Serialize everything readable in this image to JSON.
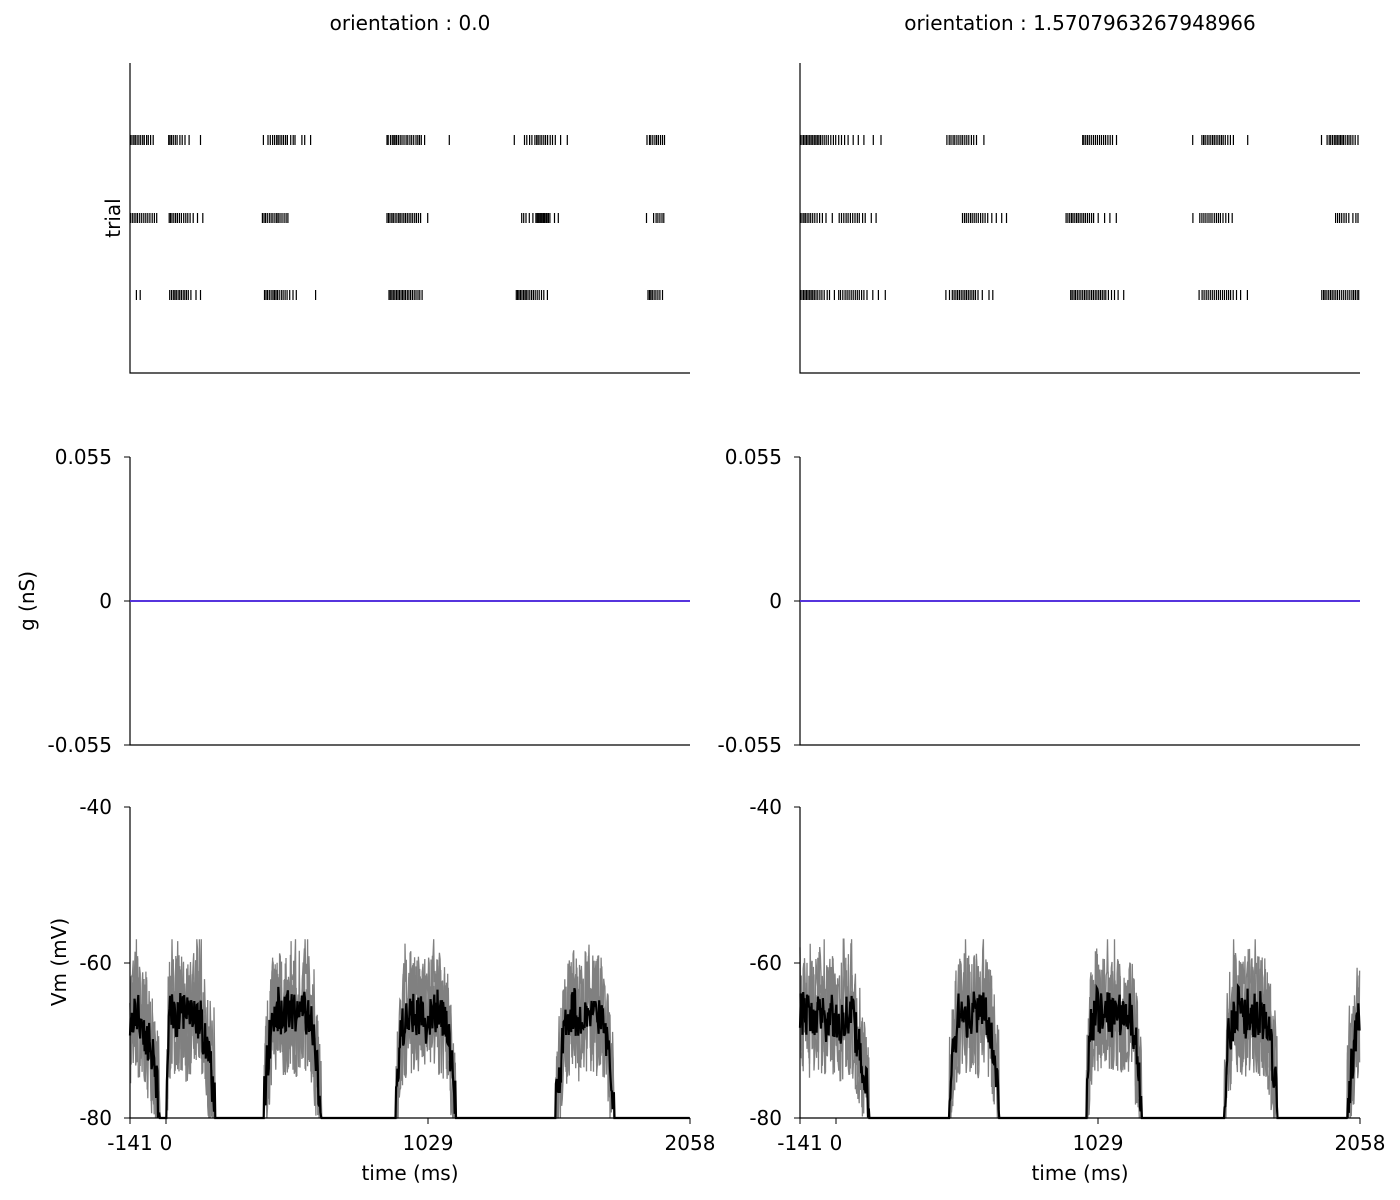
{
  "chart_data": [
    {
      "type": "raster",
      "column": 0,
      "title": "orientation : 0.0",
      "ylabel": "trial",
      "xlim": [
        -141,
        2058
      ],
      "trials": [
        {
          "spike_times_ms": [
            -139,
            -133,
            -126,
            -120,
            -113,
            -106,
            -99,
            -91,
            -85,
            -76,
            -69,
            -60,
            -50,
            11,
            16,
            22,
            29,
            37,
            44,
            55,
            64,
            75,
            91,
            136,
            383,
            401,
            410,
            419,
            427,
            435,
            441,
            448,
            455,
            462,
            470,
            477,
            490,
            500,
            507,
            534,
            545,
            568,
            868,
            873,
            882,
            889,
            895,
            900,
            906,
            913,
            920,
            927,
            935,
            943,
            950,
            958,
            965,
            973,
            982,
            989,
            996,
            1003,
            1016,
            1113,
            1368,
            1408,
            1417,
            1428,
            1437,
            1449,
            1456,
            1462,
            1469,
            1476,
            1484,
            1491,
            1499,
            1509,
            1518,
            1529,
            1550,
            1576,
            1889,
            1899,
            1904,
            1912,
            1920,
            1927,
            1934,
            1942,
            1950,
            1958
          ]
        },
        {
          "spike_times_ms": [
            -139,
            -132,
            -125,
            -118,
            -111,
            -103,
            -95,
            -87,
            -79,
            -71,
            -63,
            -54,
            -45,
            -36,
            13,
            18,
            24,
            31,
            38,
            45,
            53,
            61,
            70,
            78,
            86,
            95,
            107,
            124,
            145,
            379,
            385,
            391,
            398,
            406,
            413,
            420,
            428,
            435,
            441,
            448,
            456,
            464,
            472,
            479,
            868,
            874,
            880,
            887,
            893,
            900,
            907,
            914,
            920,
            927,
            934,
            941,
            948,
            955,
            962,
            969,
            977,
            984,
            992,
            1000,
            1028,
            1397,
            1405,
            1414,
            1427,
            1441,
            1453,
            1458,
            1462,
            1466,
            1470,
            1474,
            1478,
            1483,
            1487,
            1492,
            1497,
            1502,
            1508,
            1526,
            1541,
            1887,
            1915,
            1925,
            1932,
            1940,
            1948,
            1955
          ]
        },
        {
          "spike_times_ms": [
            -116,
            -101,
            15,
            22,
            29,
            35,
            41,
            48,
            54,
            61,
            68,
            74,
            81,
            88,
            98,
            118,
            136,
            387,
            393,
            399,
            406,
            413,
            420,
            426,
            432,
            438,
            445,
            453,
            460,
            468,
            476,
            486,
            499,
            512,
            588,
            876,
            881,
            887,
            893,
            899,
            905,
            911,
            917,
            923,
            929,
            935,
            941,
            948,
            954,
            961,
            968,
            975,
            982,
            990,
            997,
            1006,
            1376,
            1381,
            1386,
            1392,
            1398,
            1404,
            1410,
            1415,
            1422,
            1429,
            1436,
            1443,
            1450,
            1458,
            1466,
            1475,
            1484,
            1498,
            1893,
            1899,
            1904,
            1910,
            1917,
            1924,
            1932,
            1940,
            1950
          ]
        }
      ]
    },
    {
      "type": "raster",
      "column": 1,
      "title": "orientation : 1.5707963267948966",
      "ylabel": "",
      "xlim": [
        -141,
        2058
      ],
      "trials": [
        {
          "spike_times_ms": [
            -139,
            -133,
            -127,
            -121,
            -115,
            -109,
            -103,
            -97,
            -91,
            -85,
            -79,
            -73,
            -67,
            -61,
            -54,
            -46,
            -38,
            -30,
            -20,
            -10,
            -1,
            11,
            22,
            34,
            48,
            68,
            88,
            110,
            147,
            177,
            436,
            445,
            452,
            460,
            467,
            475,
            483,
            491,
            498,
            506,
            514,
            522,
            532,
            541,
            552,
            581,
            969,
            974,
            981,
            988,
            995,
            1003,
            1011,
            1019,
            1027,
            1035,
            1043,
            1051,
            1059,
            1068,
            1077,
            1086,
            1102,
            1401,
            1437,
            1444,
            1450,
            1458,
            1465,
            1472,
            1479,
            1486,
            1493,
            1500,
            1507,
            1514,
            1521,
            1529,
            1539,
            1549,
            1561,
            1617,
            1907,
            1929,
            1937,
            1943,
            1950,
            1957,
            1963,
            1969,
            1975,
            1981,
            1987,
            1993,
            2000,
            2008,
            2015,
            2022,
            2030,
            2039,
            2050
          ]
        },
        {
          "spike_times_ms": [
            -139,
            -133,
            -126,
            -120,
            -113,
            -106,
            -99,
            -91,
            -83,
            -74,
            -64,
            -53,
            -39,
            -14,
            13,
            22,
            31,
            40,
            48,
            57,
            66,
            75,
            84,
            92,
            105,
            115,
            139,
            158,
            497,
            505,
            512,
            520,
            528,
            535,
            543,
            551,
            559,
            568,
            577,
            586,
            596,
            612,
            630,
            651,
            670,
            904,
            911,
            918,
            925,
            931,
            938,
            945,
            952,
            959,
            966,
            973,
            980,
            988,
            996,
            1004,
            1012,
            1030,
            1055,
            1076,
            1101,
            1402,
            1429,
            1437,
            1445,
            1453,
            1461,
            1469,
            1477,
            1486,
            1494,
            1502,
            1510,
            1520,
            1531,
            1542,
            1556,
            1962,
            1970,
            1978,
            1986,
            1995,
            2004,
            2014,
            2030,
            2042,
            2050
          ]
        },
        {
          "spike_times_ms": [
            -139,
            -133,
            -127,
            -121,
            -115,
            -109,
            -103,
            -97,
            -91,
            -85,
            -78,
            -71,
            -63,
            -55,
            -46,
            -34,
            -25,
            -6,
            11,
            18,
            27,
            36,
            44,
            52,
            60,
            68,
            76,
            84,
            92,
            101,
            110,
            122,
            145,
            167,
            194,
            432,
            446,
            457,
            464,
            471,
            478,
            485,
            492,
            499,
            506,
            513,
            520,
            527,
            534,
            541,
            548,
            558,
            575,
            601,
            616,
            922,
            928,
            935,
            941,
            948,
            955,
            962,
            969,
            976,
            983,
            990,
            997,
            1004,
            1011,
            1018,
            1025,
            1032,
            1039,
            1046,
            1053,
            1060,
            1070,
            1082,
            1094,
            1108,
            1130,
            1426,
            1438,
            1446,
            1454,
            1462,
            1470,
            1478,
            1486,
            1494,
            1502,
            1510,
            1518,
            1526,
            1534,
            1542,
            1550,
            1560,
            1573,
            1589,
            1616,
            1908,
            1915,
            1921,
            1928,
            1935,
            1942,
            1949,
            1956,
            1963,
            1970,
            1978,
            1986,
            1994,
            2002,
            2010,
            2018,
            2026,
            2033,
            2040,
            2047,
            2053
          ]
        }
      ]
    },
    {
      "type": "line",
      "column": 0,
      "ylabel": "g (nS)",
      "xlim": [
        -141,
        2058
      ],
      "ylim": [
        -0.055,
        0.055
      ],
      "yticks": [
        "-0.055",
        "0",
        "0.055"
      ],
      "series": [
        {
          "color": "#4b2ff0",
          "x": [
            -141,
            2058
          ],
          "y": [
            0,
            0
          ]
        },
        {
          "color": "#8b1f1f",
          "x": [
            -141,
            2058
          ],
          "y": [
            0,
            0
          ]
        }
      ]
    },
    {
      "type": "line",
      "column": 1,
      "ylabel": "",
      "xlim": [
        -141,
        2058
      ],
      "ylim": [
        -0.055,
        0.055
      ],
      "yticks": [
        "-0.055",
        "0",
        "0.055"
      ],
      "series": [
        {
          "color": "#4b2ff0",
          "x": [
            -141,
            2058
          ],
          "y": [
            0,
            0
          ]
        },
        {
          "color": "#8b1f1f",
          "x": [
            -141,
            2058
          ],
          "y": [
            0,
            0
          ]
        }
      ]
    },
    {
      "type": "line",
      "column": 0,
      "ylabel": "Vm (mV)",
      "xlabel": "time (ms)",
      "xlim": [
        -141,
        2058
      ],
      "ylim": [
        -80,
        -40
      ],
      "yticks": [
        "-80",
        "-60",
        "-40"
      ],
      "xticks": [
        "-141",
        "0",
        "1029",
        "2058"
      ],
      "individual_trials_color": "#808080",
      "mean_color": "#000000",
      "mean_trace_x_ms": [
        -141,
        -120,
        -100,
        -80,
        -60,
        -40,
        -20,
        -10,
        0,
        10,
        20,
        40,
        60,
        80,
        100,
        120,
        140,
        160,
        180,
        200,
        220,
        240,
        260,
        280,
        300,
        320,
        340,
        360,
        380,
        400,
        420,
        440,
        460,
        480,
        500,
        520,
        540,
        560,
        580,
        600,
        620,
        640,
        660,
        680,
        700,
        720,
        740,
        760,
        780,
        800,
        820,
        840,
        860,
        880,
        900,
        920,
        940,
        960,
        980,
        1000,
        1020,
        1040,
        1060,
        1080,
        1100,
        1120,
        1140,
        1160,
        1180,
        1200,
        1220,
        1240,
        1260,
        1280,
        1300,
        1320,
        1340,
        1360,
        1380,
        1400,
        1420,
        1440,
        1460,
        1480,
        1500,
        1520,
        1540,
        1560,
        1580,
        1600,
        1620,
        1640,
        1660,
        1680,
        1700,
        1720,
        1740,
        1760,
        1780,
        1800,
        1820,
        1840,
        1860,
        1880,
        1900,
        1920,
        1940,
        1960,
        1980,
        2000,
        2020,
        2040,
        2058
      ],
      "mean_trace_mV": [
        -68,
        -66.5,
        -67.5,
        -69,
        -71,
        -75,
        -79,
        -80,
        -80,
        -68.5,
        -66.5,
        -67,
        -66,
        -67.5,
        -67,
        -66.5,
        -68,
        -70.5,
        -75,
        -80,
        -80,
        -80,
        -80,
        -80,
        -80,
        -80,
        -80,
        -80,
        -80,
        -72,
        -67,
        -66,
        -67.5,
        -66,
        -67,
        -66.5,
        -66,
        -66.5,
        -70,
        -76,
        -80,
        -80,
        -80,
        -80,
        -80,
        -80,
        -80,
        -80,
        -80,
        -80,
        -80,
        -80,
        -80,
        -80,
        -80,
        -69,
        -67,
        -66.5,
        -67,
        -66,
        -67.5,
        -67,
        -66,
        -67,
        -67.5,
        -73,
        -79,
        -80,
        -80,
        -80,
        -80,
        -80,
        -80,
        -80,
        -80,
        -80,
        -80,
        -80,
        -80,
        -80,
        -80,
        -80,
        -80,
        -80,
        -80,
        -80,
        -76,
        -70,
        -67,
        -66,
        -67.5,
        -66.5,
        -66,
        -67,
        -66.5,
        -68,
        -72,
        -78,
        -80,
        -80,
        -80,
        -80,
        -80,
        -80,
        -80,
        -80,
        -80,
        -80,
        -80,
        -80,
        -80,
        -80,
        -80,
        -74,
        -68,
        -64,
        -63,
        -66
      ]
    },
    {
      "type": "line",
      "column": 1,
      "ylabel": "",
      "xlabel": "time (ms)",
      "xlim": [
        -141,
        2058
      ],
      "ylim": [
        -80,
        -40
      ],
      "yticks": [
        "-80",
        "-60",
        "-40"
      ],
      "xticks": [
        "-141",
        "0",
        "1029",
        "2058"
      ],
      "individual_trials_color": "#808080",
      "mean_color": "#000000",
      "mean_trace_x_ms": [
        -141,
        -120,
        -100,
        -80,
        -60,
        -40,
        -20,
        0,
        20,
        40,
        60,
        80,
        100,
        120,
        140,
        160,
        180,
        200,
        220,
        240,
        260,
        280,
        300,
        320,
        340,
        360,
        380,
        400,
        420,
        440,
        460,
        480,
        500,
        520,
        540,
        560,
        580,
        600,
        620,
        640,
        660,
        680,
        700,
        720,
        740,
        760,
        780,
        800,
        820,
        840,
        860,
        880,
        900,
        920,
        940,
        960,
        980,
        1000,
        1020,
        1040,
        1060,
        1080,
        1100,
        1120,
        1140,
        1160,
        1180,
        1200,
        1220,
        1240,
        1260,
        1280,
        1300,
        1320,
        1340,
        1360,
        1380,
        1400,
        1420,
        1440,
        1460,
        1480,
        1500,
        1520,
        1540,
        1560,
        1580,
        1600,
        1620,
        1640,
        1660,
        1680,
        1700,
        1720,
        1740,
        1760,
        1780,
        1800,
        1820,
        1840,
        1860,
        1880,
        1900,
        1920,
        1940,
        1960,
        1980,
        2000,
        2020,
        2040,
        2058
      ],
      "mean_trace_mV": [
        -67,
        -66,
        -67.5,
        -67,
        -66,
        -67.5,
        -66.5,
        -67,
        -68,
        -66.5,
        -67,
        -69,
        -72,
        -76,
        -80,
        -80,
        -80,
        -80,
        -80,
        -80,
        -80,
        -80,
        -80,
        -80,
        -80,
        -80,
        -80,
        -80,
        -80,
        -80,
        -71,
        -67,
        -66,
        -67,
        -66.5,
        -67,
        -66,
        -67.5,
        -71,
        -78,
        -80,
        -80,
        -80,
        -80,
        -80,
        -80,
        -80,
        -80,
        -80,
        -80,
        -80,
        -80,
        -80,
        -80,
        -80,
        -80,
        -80,
        -69,
        -66,
        -67,
        -66.5,
        -67,
        -66,
        -67,
        -66.5,
        -67,
        -71,
        -78,
        -80,
        -80,
        -80,
        -80,
        -80,
        -80,
        -80,
        -80,
        -80,
        -80,
        -80,
        -80,
        -80,
        -80,
        -80,
        -80,
        -70,
        -67,
        -66,
        -67.5,
        -66,
        -67,
        -66.5,
        -67,
        -69,
        -74,
        -80,
        -80,
        -80,
        -80,
        -80,
        -80,
        -80,
        -80,
        -80,
        -80,
        -80,
        -80,
        -80,
        -80,
        -75,
        -70,
        -66,
        -64,
        -66,
        -67,
        -66
      ]
    }
  ]
}
